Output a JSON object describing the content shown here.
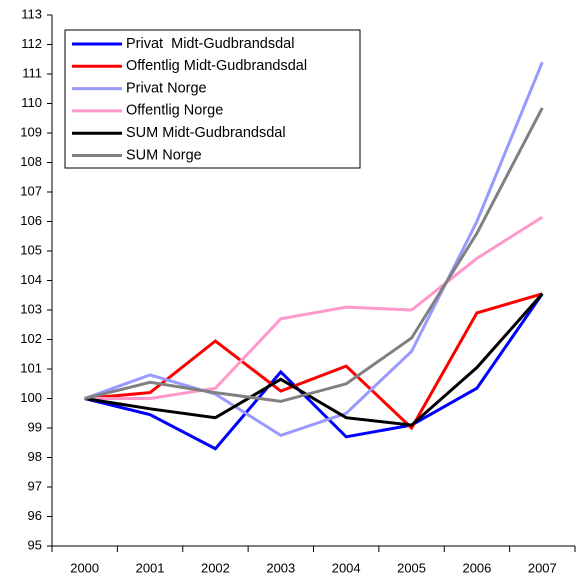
{
  "chart_data": {
    "type": "line",
    "categories": [
      "2000",
      "2001",
      "2002",
      "2003",
      "2004",
      "2005",
      "2006",
      "2007"
    ],
    "series": [
      {
        "name": "Privat  Midt-Gudbrandsdal",
        "color": "#0000ff",
        "values": [
          100,
          99.45,
          98.3,
          100.9,
          98.7,
          99.1,
          100.35,
          103.55
        ]
      },
      {
        "name": "Offentlig Midt-Gudbrandsdal",
        "color": "#ff0000",
        "values": [
          100,
          100.2,
          101.95,
          100.25,
          101.1,
          99.0,
          102.9,
          103.55
        ]
      },
      {
        "name": "Privat Norge",
        "color": "#9999ff",
        "values": [
          100,
          100.8,
          100.15,
          98.75,
          99.5,
          101.6,
          106.0,
          111.4
        ]
      },
      {
        "name": "Offentlig Norge",
        "color": "#ff99cc",
        "values": [
          100,
          100.0,
          100.35,
          102.7,
          103.1,
          103.0,
          104.75,
          106.15
        ]
      },
      {
        "name": "SUM Midt-Gudbrandsdal",
        "color": "#000000",
        "values": [
          100,
          99.65,
          99.35,
          100.65,
          99.35,
          99.1,
          101.05,
          103.55
        ]
      },
      {
        "name": "SUM Norge",
        "color": "#808080",
        "values": [
          100,
          100.55,
          100.2,
          99.9,
          100.5,
          102.05,
          105.6,
          109.85
        ]
      }
    ],
    "ylim": [
      95,
      113
    ],
    "yticks": [
      95,
      96,
      97,
      98,
      99,
      100,
      101,
      102,
      103,
      104,
      105,
      106,
      107,
      108,
      109,
      110,
      111,
      112,
      113
    ],
    "grid": false
  }
}
